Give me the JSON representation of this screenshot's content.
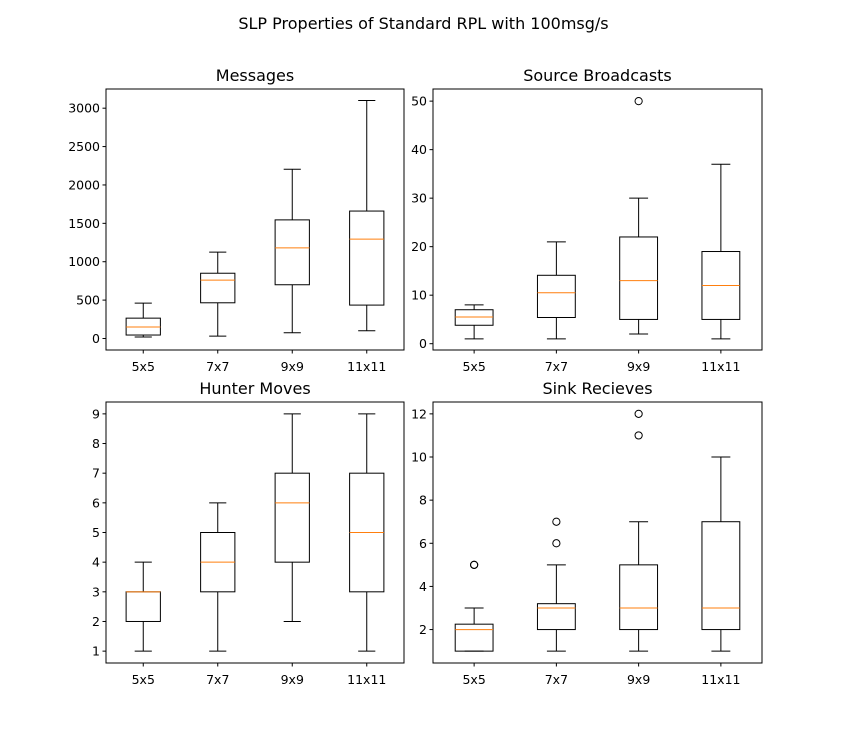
{
  "figure": {
    "suptitle": "SLP Properties of Standard RPL with 100msg/s"
  },
  "colors": {
    "box": "#000000",
    "median": "#ff7f0e",
    "background": "#ffffff"
  },
  "chart_data": [
    {
      "type": "boxplot",
      "title": "Messages",
      "categories": [
        "5x5",
        "7x7",
        "9x9",
        "11x11"
      ],
      "ylim": [
        -150,
        3250
      ],
      "yticks": [
        0,
        500,
        1000,
        1500,
        2000,
        2500,
        3000
      ],
      "boxes": [
        {
          "whislo": 20,
          "q1": 45,
          "med": 150,
          "q3": 265,
          "whishi": 460,
          "fliers": []
        },
        {
          "whislo": 30,
          "q1": 465,
          "med": 760,
          "q3": 850,
          "whishi": 1125,
          "fliers": []
        },
        {
          "whislo": 75,
          "q1": 700,
          "med": 1180,
          "q3": 1545,
          "whishi": 2205,
          "fliers": []
        },
        {
          "whislo": 100,
          "q1": 435,
          "med": 1295,
          "q3": 1660,
          "whishi": 3100,
          "fliers": []
        }
      ]
    },
    {
      "type": "boxplot",
      "title": "Source Broadcasts",
      "categories": [
        "5x5",
        "7x7",
        "9x9",
        "11x11"
      ],
      "ylim": [
        -1.3,
        52.5
      ],
      "yticks": [
        0,
        10,
        20,
        30,
        40,
        50
      ],
      "boxes": [
        {
          "whislo": 1,
          "q1": 3.8,
          "med": 5.5,
          "q3": 7,
          "whishi": 8,
          "fliers": []
        },
        {
          "whislo": 1,
          "q1": 5.4,
          "med": 10.5,
          "q3": 14.1,
          "whishi": 21,
          "fliers": []
        },
        {
          "whislo": 2,
          "q1": 5,
          "med": 13,
          "q3": 22,
          "whishi": 30,
          "fliers": [
            50
          ]
        },
        {
          "whislo": 1,
          "q1": 5,
          "med": 12,
          "q3": 19,
          "whishi": 37,
          "fliers": []
        }
      ]
    },
    {
      "type": "boxplot",
      "title": "Hunter Moves",
      "categories": [
        "5x5",
        "7x7",
        "9x9",
        "11x11"
      ],
      "ylim": [
        0.6,
        9.4
      ],
      "yticks": [
        1,
        2,
        3,
        4,
        5,
        6,
        7,
        8,
        9
      ],
      "boxes": [
        {
          "whislo": 1,
          "q1": 2,
          "med": 3,
          "q3": 3,
          "whishi": 4,
          "fliers": []
        },
        {
          "whislo": 1,
          "q1": 3,
          "med": 4,
          "q3": 5,
          "whishi": 6,
          "fliers": []
        },
        {
          "whislo": 2,
          "q1": 4,
          "med": 6,
          "q3": 7,
          "whishi": 9,
          "fliers": []
        },
        {
          "whislo": 1,
          "q1": 3,
          "med": 5,
          "q3": 7,
          "whishi": 9,
          "fliers": []
        }
      ]
    },
    {
      "type": "boxplot",
      "title": "Sink Recieves",
      "categories": [
        "5x5",
        "7x7",
        "9x9",
        "11x11"
      ],
      "ylim": [
        0.45,
        12.55
      ],
      "yticks": [
        2,
        4,
        6,
        8,
        10,
        12
      ],
      "boxes": [
        {
          "whislo": 1,
          "q1": 1,
          "med": 2,
          "q3": 2.25,
          "whishi": 3,
          "fliers": [
            5,
            5
          ]
        },
        {
          "whislo": 1,
          "q1": 2,
          "med": 3,
          "q3": 3.2,
          "whishi": 5,
          "fliers": [
            6,
            7
          ]
        },
        {
          "whislo": 1,
          "q1": 2,
          "med": 3,
          "q3": 5,
          "whishi": 7,
          "fliers": [
            11,
            12
          ]
        },
        {
          "whislo": 1,
          "q1": 2,
          "med": 3,
          "q3": 7,
          "whishi": 10,
          "fliers": []
        }
      ]
    }
  ]
}
